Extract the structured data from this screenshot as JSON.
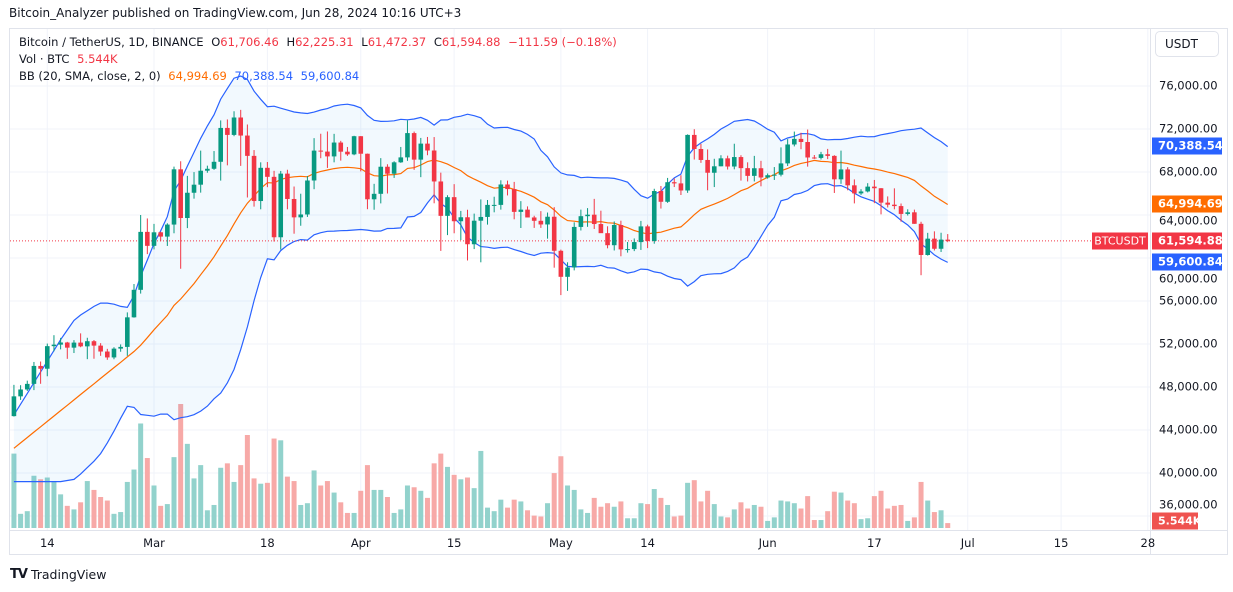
{
  "publisher_line": "Bitcoin_Analyzer published on TradingView.com, Jun 28, 2024 10:16 UTC+3",
  "legend": {
    "symbol": "Bitcoin / TetherUS, 1D, BINANCE",
    "o_label": "O",
    "o": "61,706.46",
    "h_label": "H",
    "h": "62,225.31",
    "l_label": "L",
    "l": "61,472.37",
    "c_label": "C",
    "c": "61,594.88",
    "change": "−111.59 (−0.18%)",
    "vol_label": "Vol · BTC",
    "vol": "5.544K",
    "bb_label": "BB (20, SMA, close, 2, 0)",
    "bb_basis": "64,994.69",
    "bb_upper": "70,388.54",
    "bb_lower": "59,600.84"
  },
  "currency_button": "USDT",
  "tags": {
    "upper": {
      "text": "70,388.54",
      "value": 70388.54,
      "color": "#2962ff"
    },
    "basis": {
      "text": "64,994.69",
      "value": 64994.69,
      "color": "#ff6d00"
    },
    "last": {
      "text": "61,594.88",
      "value": 61594.88,
      "color": "#f23645"
    },
    "lower": {
      "text": "59,600.84",
      "value": 59600.84,
      "color": "#2962ff"
    },
    "volume": {
      "text": "5.544K",
      "color": "#ef5350"
    },
    "symbol": "BTCUSDT"
  },
  "branding": {
    "logo_text": "TradingView"
  },
  "chart_data": {
    "type": "candlestick",
    "symbol": "BTCUSDT",
    "interval": "1D",
    "colors": {
      "up": "#089981",
      "down": "#f23645",
      "vol_up": "#92d2cc",
      "vol_down": "#f7a9a7",
      "bb_basis": "#ff6d00",
      "bb_band": "#2962ff",
      "last_line": "#f23645"
    },
    "y_axis": {
      "ticks": [
        76000,
        72000,
        68000,
        64000,
        60000,
        56000,
        52000,
        48000,
        44000,
        40000,
        36000
      ],
      "tick_labels": [
        "76,000.00",
        "72,000.00",
        "68,000.00",
        "64,000.00",
        "60,000.00",
        "56,000.00",
        "52,000.00",
        "48,000.00",
        "44,000.00",
        "40,000.00",
        "36,000.00"
      ],
      "unit": "USDT"
    },
    "x_axis": {
      "ticks": [
        {
          "label": "14",
          "date": "2024-02-14"
        },
        {
          "label": "Mar",
          "date": "2024-03-01"
        },
        {
          "label": "18",
          "date": "2024-03-18"
        },
        {
          "label": "Apr",
          "date": "2024-04-01"
        },
        {
          "label": "15",
          "date": "2024-04-15"
        },
        {
          "label": "May",
          "date": "2024-05-01"
        },
        {
          "label": "14",
          "date": "2024-05-14"
        },
        {
          "label": "Jun",
          "date": "2024-06-01"
        },
        {
          "label": "17",
          "date": "2024-06-17"
        },
        {
          "label": "Jul",
          "date": "2024-07-01"
        },
        {
          "label": "15",
          "date": "2024-07-15"
        },
        {
          "label": "28",
          "date": "2024-07-28"
        }
      ]
    },
    "grid": true,
    "volume_unit": "K BTC",
    "candle_fields": [
      "date",
      "open",
      "high",
      "low",
      "close",
      "volume_k"
    ],
    "candles": [
      [
        "2024-02-09",
        45290,
        48200,
        45250,
        47130,
        84
      ],
      [
        "2024-02-10",
        47130,
        48170,
        46800,
        47770,
        16
      ],
      [
        "2024-02-11",
        47770,
        48590,
        47630,
        48290,
        19
      ],
      [
        "2024-02-12",
        48290,
        50330,
        47710,
        49960,
        59
      ],
      [
        "2024-02-13",
        49960,
        50370,
        48300,
        49700,
        55
      ],
      [
        "2024-02-14",
        49700,
        52040,
        49000,
        51800,
        57
      ],
      [
        "2024-02-15",
        51800,
        52820,
        51320,
        51940,
        53
      ],
      [
        "2024-02-16",
        51940,
        52570,
        51500,
        52140,
        38
      ],
      [
        "2024-02-17",
        52140,
        52200,
        50620,
        51660,
        25
      ],
      [
        "2024-02-18",
        51660,
        52360,
        51160,
        52130,
        21
      ],
      [
        "2024-02-19",
        52130,
        52990,
        51700,
        51780,
        29
      ],
      [
        "2024-02-20",
        51780,
        52580,
        50590,
        52260,
        53
      ],
      [
        "2024-02-21",
        52260,
        52370,
        50630,
        51850,
        43
      ],
      [
        "2024-02-22",
        51850,
        52080,
        50900,
        51300,
        35
      ],
      [
        "2024-02-23",
        51300,
        51550,
        50530,
        50750,
        31
      ],
      [
        "2024-02-24",
        50750,
        51700,
        50580,
        51570,
        16
      ],
      [
        "2024-02-25",
        51570,
        51960,
        51280,
        51730,
        18
      ],
      [
        "2024-02-26",
        51730,
        54940,
        50900,
        54480,
        52
      ],
      [
        "2024-02-27",
        54480,
        57580,
        54450,
        57040,
        66
      ],
      [
        "2024-02-28",
        57040,
        64000,
        56690,
        62430,
        118
      ],
      [
        "2024-02-29",
        62430,
        63680,
        60360,
        61130,
        79
      ],
      [
        "2024-03-01",
        61130,
        63170,
        60800,
        62390,
        48
      ],
      [
        "2024-03-02",
        62390,
        62440,
        61560,
        61990,
        25
      ],
      [
        "2024-03-03",
        61990,
        63230,
        61120,
        63110,
        27
      ],
      [
        "2024-03-04",
        63110,
        68500,
        62300,
        68250,
        80
      ],
      [
        "2024-03-05",
        68250,
        69000,
        59000,
        63720,
        140
      ],
      [
        "2024-03-06",
        63720,
        67640,
        62780,
        66070,
        95
      ],
      [
        "2024-03-07",
        66070,
        67990,
        65520,
        66820,
        56
      ],
      [
        "2024-03-08",
        66820,
        69990,
        66080,
        68120,
        71
      ],
      [
        "2024-03-09",
        68120,
        68590,
        67930,
        68300,
        20
      ],
      [
        "2024-03-10",
        68300,
        69950,
        68200,
        68950,
        26
      ],
      [
        "2024-03-11",
        68950,
        72800,
        67200,
        72100,
        68
      ],
      [
        "2024-03-12",
        72100,
        72890,
        68620,
        71450,
        73
      ],
      [
        "2024-03-13",
        71450,
        73650,
        71330,
        73070,
        52
      ],
      [
        "2024-03-14",
        73070,
        73780,
        68570,
        71390,
        71
      ],
      [
        "2024-03-15",
        71390,
        72420,
        65630,
        69500,
        105
      ],
      [
        "2024-03-16",
        69500,
        70040,
        64780,
        65300,
        56
      ],
      [
        "2024-03-17",
        65300,
        68900,
        64530,
        68390,
        50
      ],
      [
        "2024-03-18",
        68390,
        68930,
        66590,
        67550,
        51
      ],
      [
        "2024-03-19",
        67550,
        68110,
        61530,
        61930,
        101
      ],
      [
        "2024-03-20",
        61930,
        68100,
        60780,
        67850,
        99
      ],
      [
        "2024-03-21",
        67850,
        68210,
        64530,
        65490,
        58
      ],
      [
        "2024-03-22",
        65490,
        66650,
        62260,
        63780,
        53
      ],
      [
        "2024-03-23",
        63780,
        65980,
        63000,
        64050,
        26
      ],
      [
        "2024-03-24",
        64050,
        67620,
        63820,
        67210,
        28
      ],
      [
        "2024-03-25",
        67210,
        71150,
        66400,
        69990,
        65
      ],
      [
        "2024-03-26",
        69990,
        71560,
        69280,
        69900,
        48
      ],
      [
        "2024-03-27",
        69900,
        71770,
        68380,
        69450,
        53
      ],
      [
        "2024-03-28",
        69450,
        71550,
        68900,
        70740,
        40
      ],
      [
        "2024-03-29",
        70740,
        70900,
        69060,
        69890,
        29
      ],
      [
        "2024-03-30",
        69890,
        70330,
        69500,
        69640,
        17
      ],
      [
        "2024-03-31",
        69640,
        71370,
        69560,
        71330,
        17
      ],
      [
        "2024-04-01",
        71330,
        71340,
        68060,
        69700,
        42
      ],
      [
        "2024-04-02",
        69700,
        69710,
        64540,
        65460,
        71
      ],
      [
        "2024-04-03",
        65460,
        66900,
        64490,
        65970,
        43
      ],
      [
        "2024-04-04",
        65970,
        69290,
        65080,
        68490,
        43
      ],
      [
        "2024-04-05",
        68490,
        68720,
        66000,
        67840,
        35
      ],
      [
        "2024-04-06",
        67840,
        69000,
        67450,
        68900,
        17
      ],
      [
        "2024-04-07",
        68900,
        70330,
        68850,
        69360,
        21
      ],
      [
        "2024-04-08",
        69360,
        72800,
        69040,
        71620,
        48
      ],
      [
        "2024-04-09",
        71620,
        71760,
        68200,
        69150,
        46
      ],
      [
        "2024-04-10",
        69150,
        71170,
        67520,
        70640,
        42
      ],
      [
        "2024-04-11",
        70640,
        71260,
        69560,
        70000,
        34
      ],
      [
        "2024-04-12",
        70000,
        71250,
        65090,
        67120,
        73
      ],
      [
        "2024-04-13",
        67120,
        67940,
        60660,
        63920,
        84
      ],
      [
        "2024-04-14",
        63920,
        65840,
        62130,
        65660,
        69
      ],
      [
        "2024-04-15",
        65660,
        66870,
        62300,
        63420,
        60
      ],
      [
        "2024-04-16",
        63420,
        64380,
        61670,
        63790,
        55
      ],
      [
        "2024-04-17",
        63790,
        64490,
        59770,
        61280,
        57
      ],
      [
        "2024-04-18",
        61280,
        64130,
        60830,
        63470,
        45
      ],
      [
        "2024-04-19",
        63470,
        65450,
        59600,
        63820,
        87
      ],
      [
        "2024-04-20",
        63820,
        65390,
        63100,
        64940,
        23
      ],
      [
        "2024-04-21",
        64940,
        65700,
        64250,
        64940,
        19
      ],
      [
        "2024-04-22",
        64940,
        67230,
        64500,
        66840,
        32
      ],
      [
        "2024-04-23",
        66840,
        67200,
        65820,
        66410,
        23
      ],
      [
        "2024-04-24",
        66410,
        67080,
        63600,
        64290,
        32
      ],
      [
        "2024-04-25",
        64290,
        65290,
        62790,
        64500,
        30
      ],
      [
        "2024-04-26",
        64500,
        64800,
        63800,
        63770,
        20
      ],
      [
        "2024-04-27",
        63770,
        63930,
        62800,
        63460,
        14
      ],
      [
        "2024-04-28",
        63460,
        64360,
        62800,
        63120,
        13
      ],
      [
        "2024-04-29",
        63120,
        64230,
        61800,
        63840,
        28
      ],
      [
        "2024-04-30",
        63840,
        64730,
        59100,
        60670,
        62
      ],
      [
        "2024-05-01",
        60670,
        60780,
        56550,
        58250,
        81
      ],
      [
        "2024-05-02",
        58250,
        59600,
        56940,
        59120,
        48
      ],
      [
        "2024-05-03",
        59120,
        63320,
        58850,
        62890,
        43
      ],
      [
        "2024-05-04",
        62890,
        64500,
        62560,
        63890,
        21
      ],
      [
        "2024-05-05",
        63890,
        64640,
        62900,
        64030,
        17
      ],
      [
        "2024-05-06",
        64030,
        65500,
        62700,
        63160,
        34
      ],
      [
        "2024-05-07",
        63160,
        64400,
        62400,
        62310,
        24
      ],
      [
        "2024-05-08",
        62310,
        62950,
        60900,
        61190,
        28
      ],
      [
        "2024-05-09",
        61190,
        63400,
        60700,
        63070,
        24
      ],
      [
        "2024-05-10",
        63070,
        63470,
        60160,
        60800,
        30
      ],
      [
        "2024-05-11",
        60800,
        61490,
        60500,
        60830,
        11
      ],
      [
        "2024-05-12",
        60830,
        61820,
        60640,
        61480,
        11
      ],
      [
        "2024-05-13",
        61480,
        63450,
        60750,
        62940,
        28
      ],
      [
        "2024-05-14",
        62940,
        63100,
        60920,
        61580,
        27
      ],
      [
        "2024-05-15",
        61580,
        66440,
        61330,
        66230,
        44
      ],
      [
        "2024-05-16",
        66230,
        66700,
        64600,
        65230,
        34
      ],
      [
        "2024-05-17",
        65230,
        67450,
        65130,
        67050,
        26
      ],
      [
        "2024-05-18",
        67050,
        67400,
        66600,
        66940,
        13
      ],
      [
        "2024-05-19",
        66940,
        67700,
        65860,
        66280,
        14
      ],
      [
        "2024-05-20",
        66280,
        71500,
        66060,
        71450,
        51
      ],
      [
        "2024-05-21",
        71450,
        71980,
        69160,
        70140,
        54
      ],
      [
        "2024-05-22",
        70140,
        70620,
        68850,
        69120,
        30
      ],
      [
        "2024-05-23",
        69120,
        70100,
        66300,
        67930,
        42
      ],
      [
        "2024-05-24",
        67930,
        69230,
        66600,
        68530,
        27
      ],
      [
        "2024-05-25",
        68530,
        69560,
        68530,
        69270,
        13
      ],
      [
        "2024-05-26",
        69270,
        69520,
        68230,
        68510,
        12
      ],
      [
        "2024-05-27",
        68510,
        70630,
        68250,
        69390,
        21
      ],
      [
        "2024-05-28",
        69390,
        69560,
        67200,
        68360,
        29
      ],
      [
        "2024-05-29",
        68360,
        68900,
        67120,
        67640,
        22
      ],
      [
        "2024-05-30",
        67640,
        69500,
        67120,
        68350,
        26
      ],
      [
        "2024-05-31",
        68350,
        69040,
        66670,
        67490,
        24
      ],
      [
        "2024-06-01",
        67490,
        67860,
        67380,
        67700,
        8
      ],
      [
        "2024-06-02",
        67700,
        68460,
        67260,
        67750,
        12
      ],
      [
        "2024-06-03",
        67750,
        70290,
        67590,
        68800,
        31
      ],
      [
        "2024-06-04",
        68800,
        71060,
        68560,
        70560,
        30
      ],
      [
        "2024-06-05",
        70560,
        71760,
        70380,
        71080,
        28
      ],
      [
        "2024-06-06",
        71080,
        71650,
        70120,
        70790,
        22
      ],
      [
        "2024-06-07",
        70790,
        71950,
        68500,
        69350,
        36
      ],
      [
        "2024-06-08",
        69350,
        69580,
        69220,
        69310,
        9
      ],
      [
        "2024-06-09",
        69310,
        69870,
        69160,
        69650,
        9
      ],
      [
        "2024-06-10",
        69650,
        70150,
        69200,
        69500,
        19
      ],
      [
        "2024-06-11",
        69500,
        69560,
        66050,
        67320,
        41
      ],
      [
        "2024-06-12",
        67320,
        69990,
        66900,
        68240,
        40
      ],
      [
        "2024-06-13",
        68240,
        68450,
        66300,
        66760,
        31
      ],
      [
        "2024-06-14",
        66760,
        67310,
        65080,
        66010,
        28
      ],
      [
        "2024-06-15",
        66010,
        66400,
        65870,
        66190,
        10
      ],
      [
        "2024-06-16",
        66190,
        66960,
        66100,
        66640,
        11
      ],
      [
        "2024-06-17",
        66640,
        67260,
        65100,
        66490,
        36
      ],
      [
        "2024-06-18",
        66490,
        66500,
        64060,
        65150,
        42
      ],
      [
        "2024-06-19",
        65150,
        65730,
        64700,
        64960,
        22
      ],
      [
        "2024-06-20",
        64960,
        66480,
        64530,
        64830,
        25
      ],
      [
        "2024-06-21",
        64830,
        65070,
        63380,
        64100,
        26
      ],
      [
        "2024-06-22",
        64100,
        64530,
        63950,
        64250,
        8
      ],
      [
        "2024-06-23",
        64250,
        64500,
        63180,
        63180,
        12
      ],
      [
        "2024-06-24",
        63180,
        63370,
        58400,
        60280,
        52
      ],
      [
        "2024-06-25",
        60280,
        62340,
        60220,
        61800,
        31
      ],
      [
        "2024-06-26",
        61800,
        62480,
        60700,
        60860,
        18
      ],
      [
        "2024-06-27",
        60860,
        62350,
        60560,
        61710,
        20
      ],
      [
        "2024-06-28",
        61706.46,
        62225.31,
        61472.37,
        61594.88,
        5.544
      ]
    ],
    "bollinger": {
      "length": 20,
      "mult": 2,
      "source": "close",
      "early_basis": [
        42300,
        42800,
        43300,
        43800,
        44300,
        44800,
        45300,
        45800,
        46300,
        46800,
        47300,
        47800,
        48300,
        48800,
        49300,
        49800,
        50300,
        50800,
        51300
      ],
      "early_upper": [
        45400,
        46400,
        47400,
        48400,
        49400,
        50400,
        51400,
        52400,
        53300,
        54200,
        54700,
        55100,
        55500,
        55800,
        55800,
        55700,
        55500,
        55400,
        56500
      ]
    }
  }
}
